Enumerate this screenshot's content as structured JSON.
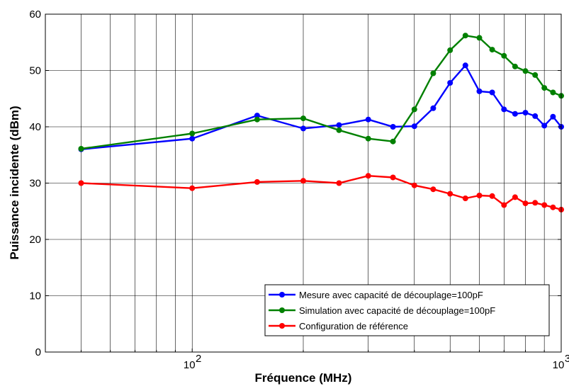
{
  "chart_data": {
    "type": "line",
    "title": "",
    "xlabel": "Fréquence (MHz)",
    "ylabel": "Puissance incidente (dBm)",
    "xscale": "log",
    "xlim": [
      40,
      1000
    ],
    "ylim": [
      0,
      60
    ],
    "yticks": [
      0,
      10,
      20,
      30,
      40,
      50,
      60
    ],
    "xticks": [
      {
        "value": 100,
        "base": "10",
        "exp": "2"
      },
      {
        "value": 1000,
        "base": "10",
        "exp": "3"
      }
    ],
    "grid": true,
    "legend_position": "bottom-right",
    "series": [
      {
        "name": "Mesure avec capacité de découplage=100pF",
        "color": "#0000ff",
        "x": [
          50,
          100,
          150,
          200,
          250,
          300,
          350,
          400,
          450,
          500,
          550,
          600,
          650,
          700,
          750,
          800,
          850,
          900,
          950,
          1000
        ],
        "y": [
          36.0,
          37.9,
          42.0,
          39.7,
          40.3,
          41.3,
          40.0,
          40.1,
          43.3,
          47.8,
          50.9,
          46.3,
          46.1,
          43.1,
          42.3,
          42.5,
          41.9,
          40.2,
          41.8,
          40.0
        ]
      },
      {
        "name": "Simulation avec capacité de découplage=100pF",
        "color": "#008000",
        "x": [
          50,
          100,
          150,
          200,
          250,
          300,
          350,
          400,
          450,
          500,
          550,
          600,
          650,
          700,
          750,
          800,
          850,
          900,
          950,
          1000
        ],
        "y": [
          36.1,
          38.8,
          41.3,
          41.5,
          39.4,
          37.9,
          37.4,
          43.1,
          49.5,
          53.6,
          56.2,
          55.8,
          53.7,
          52.6,
          50.7,
          49.9,
          49.2,
          46.9,
          46.1,
          45.5
        ]
      },
      {
        "name": "Configuration de référence",
        "color": "#ff0000",
        "x": [
          50,
          100,
          150,
          200,
          250,
          300,
          350,
          400,
          450,
          500,
          550,
          600,
          650,
          700,
          750,
          800,
          850,
          900,
          950,
          1000
        ],
        "y": [
          30.0,
          29.1,
          30.2,
          30.4,
          30.0,
          31.3,
          31.0,
          29.6,
          28.9,
          28.1,
          27.3,
          27.8,
          27.7,
          26.1,
          27.5,
          26.4,
          26.5,
          26.1,
          25.7,
          25.3
        ]
      }
    ]
  }
}
